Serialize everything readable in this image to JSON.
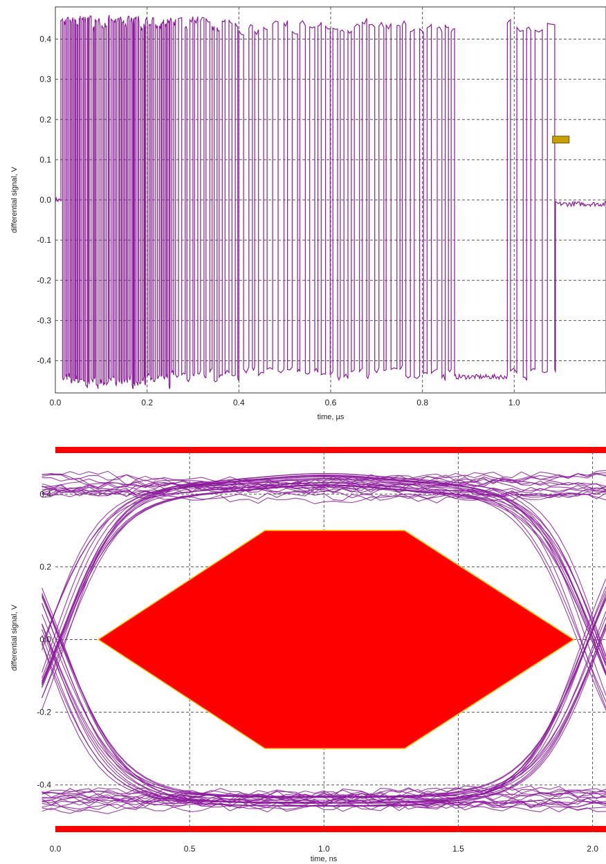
{
  "chart_data": [
    {
      "type": "line",
      "title": "",
      "xlabel": "time, µs",
      "ylabel": "differential signal, V",
      "xlim": [
        0.0,
        1.2
      ],
      "ylim": [
        -0.48,
        0.48
      ],
      "xticks": [
        "0.0",
        "0.2",
        "0.4",
        "0.6",
        "0.8",
        "1.0"
      ],
      "yticks": [
        "0.4",
        "0.3",
        "0.2",
        "0.1",
        "0.0",
        "-0.1",
        "-0.2",
        "-0.3",
        "-0.4"
      ],
      "grid": true,
      "line_color": "#8B1A9B",
      "marker_color": "#C8A000",
      "series": [
        {
          "signal_segments": [
            {
              "t_start": 0.0,
              "t_end": 0.012,
              "level": 0.0
            },
            {
              "t_start": 0.012,
              "t_end": 0.25,
              "toggle_spacing": 0.003,
              "high": 0.44,
              "low": -0.45
            },
            {
              "t_start": 0.25,
              "t_end": 0.4,
              "toggle_spacing": 0.006,
              "high": 0.44,
              "low": -0.44
            },
            {
              "t_start": 0.4,
              "t_end": 0.87,
              "toggle_spacing": 0.009,
              "high": 0.43,
              "low": -0.43
            },
            {
              "t_start": 0.87,
              "t_end": 0.985,
              "level": -0.44
            },
            {
              "t_start": 0.985,
              "t_end": 1.09,
              "toggle_spacing": 0.012,
              "high": 0.43,
              "low": -0.43
            },
            {
              "t_start": 1.09,
              "t_end": 1.2,
              "level": -0.01
            }
          ]
        }
      ],
      "annotations": [
        {
          "x": 1.085,
          "y": 0.15,
          "kind": "marker"
        }
      ]
    },
    {
      "type": "line",
      "title": "",
      "xlabel": "time, ns",
      "ylabel": "differential signal, V",
      "xlim": [
        0.0,
        2.05
      ],
      "ylim": [
        -0.53,
        0.53
      ],
      "xticks": [
        "0.0",
        "0.5",
        "1.0",
        "1.5",
        "2.0"
      ],
      "yticks": [
        "0.4",
        "0.2",
        "0.0",
        "-0.2",
        "-0.4"
      ],
      "grid": true,
      "trace_color": "#8B1A9B",
      "mask_color": "#FF0000",
      "eye_diagram": {
        "high_level": 0.42,
        "low_level": -0.44,
        "crossings_ns": [
          0.0,
          2.0
        ],
        "trace_count": 60
      },
      "mask": {
        "polygon": [
          [
            0.16,
            0.0
          ],
          [
            0.78,
            0.3
          ],
          [
            1.3,
            0.3
          ],
          [
            1.93,
            0.0
          ],
          [
            1.3,
            -0.3
          ],
          [
            0.78,
            -0.3
          ]
        ],
        "top_limit": 0.53,
        "bottom_limit": -0.53
      }
    }
  ]
}
